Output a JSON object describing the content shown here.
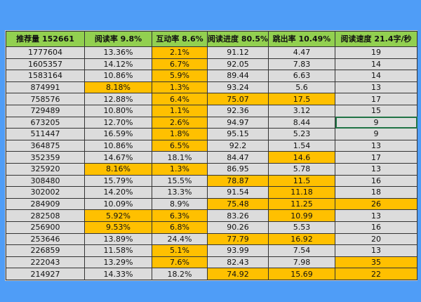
{
  "colors": {
    "background": "#4f9df7",
    "header": "#92d050",
    "cell": "#dcdcdc",
    "highlight": "#ffc000",
    "selection": "#217346"
  },
  "headers": [
    "推荐量  152661",
    "阅读率  9.8%",
    "互动率  8.6%",
    "阅读进度  80.5%",
    "跳出率  10.49%",
    "阅读速度  21.4字/秒"
  ],
  "rows": [
    {
      "cells": [
        "1777604",
        "13.36%",
        "2.1%",
        "91.12",
        "4.47",
        "19"
      ],
      "highlight": [
        false,
        false,
        true,
        false,
        false,
        false
      ]
    },
    {
      "cells": [
        "1605357",
        "14.12%",
        "6.7%",
        "92.05",
        "7.83",
        "14"
      ],
      "highlight": [
        false,
        false,
        true,
        false,
        false,
        false
      ]
    },
    {
      "cells": [
        "1583164",
        "10.86%",
        "5.9%",
        "89.44",
        "6.63",
        "14"
      ],
      "highlight": [
        false,
        false,
        true,
        false,
        false,
        false
      ]
    },
    {
      "cells": [
        "874991",
        "8.18%",
        "1.3%",
        "93.24",
        "5.6",
        "13"
      ],
      "highlight": [
        false,
        true,
        true,
        false,
        false,
        false
      ]
    },
    {
      "cells": [
        "758576",
        "12.88%",
        "6.4%",
        "75.07",
        "17.5",
        "17"
      ],
      "highlight": [
        false,
        false,
        true,
        true,
        true,
        false
      ]
    },
    {
      "cells": [
        "729489",
        "10.80%",
        "1.1%",
        "92.36",
        "3.12",
        "15"
      ],
      "highlight": [
        false,
        false,
        true,
        false,
        false,
        false
      ]
    },
    {
      "cells": [
        "673205",
        "12.70%",
        "2.6%",
        "94.97",
        "8.44",
        "9"
      ],
      "highlight": [
        false,
        false,
        true,
        false,
        false,
        false
      ],
      "selected": 5
    },
    {
      "cells": [
        "511447",
        "16.59%",
        "1.8%",
        "95.15",
        "5.23",
        "9"
      ],
      "highlight": [
        false,
        false,
        true,
        false,
        false,
        false
      ]
    },
    {
      "cells": [
        "364875",
        "10.86%",
        "6.5%",
        "92.2",
        "1.54",
        "13"
      ],
      "highlight": [
        false,
        false,
        true,
        false,
        false,
        false
      ]
    },
    {
      "cells": [
        "352359",
        "14.67%",
        "18.1%",
        "84.47",
        "14.6",
        "17"
      ],
      "highlight": [
        false,
        false,
        false,
        false,
        true,
        false
      ]
    },
    {
      "cells": [
        "325920",
        "8.16%",
        "1.3%",
        "86.95",
        "5.78",
        "13"
      ],
      "highlight": [
        false,
        true,
        true,
        false,
        false,
        false
      ]
    },
    {
      "cells": [
        "308480",
        "15.79%",
        "15.5%",
        "78.87",
        "11.5",
        "16"
      ],
      "highlight": [
        false,
        false,
        false,
        true,
        true,
        false
      ]
    },
    {
      "cells": [
        "302002",
        "14.20%",
        "13.3%",
        "91.54",
        "11.18",
        "18"
      ],
      "highlight": [
        false,
        false,
        false,
        false,
        true,
        false
      ]
    },
    {
      "cells": [
        "284909",
        "10.09%",
        "8.9%",
        "75.48",
        "11.25",
        "26"
      ],
      "highlight": [
        false,
        false,
        false,
        true,
        true,
        true
      ]
    },
    {
      "cells": [
        "282508",
        "5.92%",
        "6.3%",
        "83.26",
        "10.99",
        "13"
      ],
      "highlight": [
        false,
        true,
        true,
        false,
        true,
        false
      ]
    },
    {
      "cells": [
        "256900",
        "9.53%",
        "6.8%",
        "90.26",
        "5.53",
        "16"
      ],
      "highlight": [
        false,
        true,
        true,
        false,
        false,
        false
      ]
    },
    {
      "cells": [
        "253646",
        "13.89%",
        "24.4%",
        "77.79",
        "16.92",
        "20"
      ],
      "highlight": [
        false,
        false,
        false,
        true,
        true,
        false
      ]
    },
    {
      "cells": [
        "226859",
        "11.58%",
        "5.1%",
        "93.99",
        "7.54",
        "13"
      ],
      "highlight": [
        false,
        false,
        true,
        false,
        false,
        false
      ]
    },
    {
      "cells": [
        "222043",
        "13.29%",
        "7.6%",
        "82.43",
        "7.98",
        "35"
      ],
      "highlight": [
        false,
        false,
        true,
        false,
        false,
        true
      ]
    },
    {
      "cells": [
        "214927",
        "14.33%",
        "18.2%",
        "74.92",
        "15.69",
        "22"
      ],
      "highlight": [
        false,
        false,
        false,
        true,
        true,
        true
      ]
    }
  ]
}
